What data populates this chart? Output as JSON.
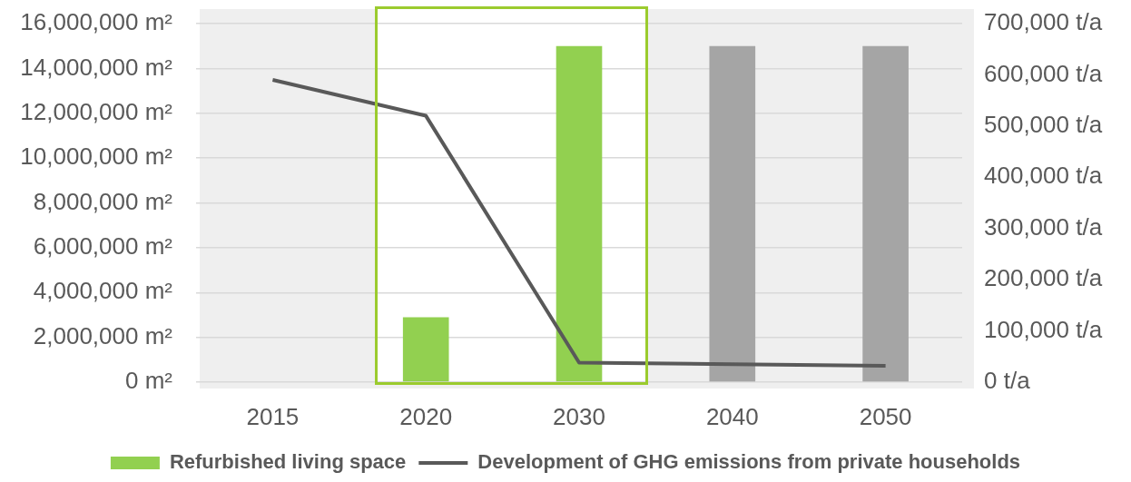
{
  "chart_data": {
    "type": "bar",
    "categories": [
      "2015",
      "2020",
      "2030",
      "2040",
      "2050"
    ],
    "series": [
      {
        "name": "Refurbished living space",
        "colors": [
          null,
          "#92d050",
          "#92d050",
          "#a5a5a5",
          "#a5a5a5"
        ],
        "values": [
          null,
          2900000,
          15000000,
          15000000,
          15000000
        ]
      },
      {
        "name": "Development of GHG emissions from private households",
        "type": "line",
        "color": "#595959",
        "axis": "y2",
        "values": [
          590000,
          520000,
          38000,
          35000,
          32000
        ]
      }
    ],
    "ylim": [
      0,
      16000000
    ],
    "yticks": [
      {
        "value": 0,
        "label": "0 m²"
      },
      {
        "value": 2000000,
        "label": "2,000,000 m²"
      },
      {
        "value": 4000000,
        "label": "4,000,000 m²"
      },
      {
        "value": 6000000,
        "label": "6,000,000 m²"
      },
      {
        "value": 8000000,
        "label": "8,000,000 m²"
      },
      {
        "value": 10000000,
        "label": "10,000,000 m²"
      },
      {
        "value": 12000000,
        "label": "12,000,000 m²"
      },
      {
        "value": 14000000,
        "label": "14,000,000 m²"
      },
      {
        "value": 16000000,
        "label": "16,000,000 m²"
      }
    ],
    "y2lim": [
      0,
      700000
    ],
    "y2ticks": [
      {
        "value": 0,
        "label": "0 t/a"
      },
      {
        "value": 100000,
        "label": "100,000 t/a"
      },
      {
        "value": 200000,
        "label": "200,000 t/a"
      },
      {
        "value": 300000,
        "label": "300,000 t/a"
      },
      {
        "value": 400000,
        "label": "400,000 t/a"
      },
      {
        "value": 500000,
        "label": "500,000 t/a"
      },
      {
        "value": 600000,
        "label": "600,000 t/a"
      },
      {
        "value": 700000,
        "label": "700,000 t/a"
      }
    ],
    "grid": "y",
    "legend": "bottom",
    "marker": "none",
    "bands": [
      {
        "axis": "x",
        "from": "2020",
        "to": "2030",
        "color": "#ffffff"
      }
    ]
  }
}
